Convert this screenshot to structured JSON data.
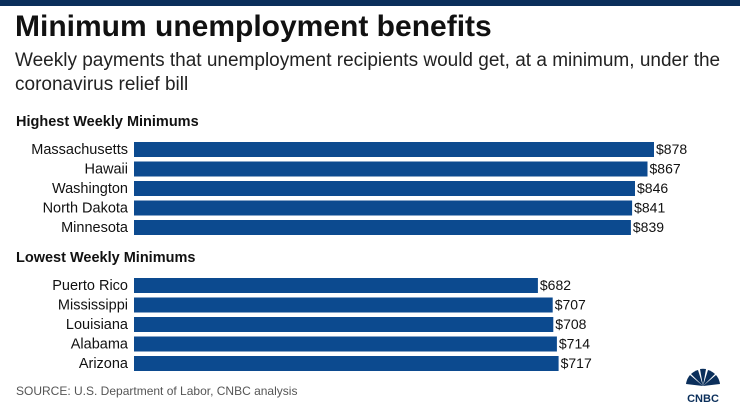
{
  "title": "Minimum unemployment benefits",
  "subtitle": "Weekly payments that unemployment recipients would get, at a minimum, under the coronavirus relief bill",
  "source": "SOURCE: U.S. Department of Labor, CNBC analysis",
  "logo_text": "CNBC",
  "colors": {
    "bar": "#0c4a8f",
    "top_rule": "#0b2f5b"
  },
  "chart_data": [
    {
      "type": "bar",
      "orientation": "horizontal",
      "title": "Highest Weekly Minimums",
      "categories": [
        "Massachusetts",
        "Hawaii",
        "Washington",
        "North Dakota",
        "Minnesota"
      ],
      "values": [
        878,
        867,
        846,
        841,
        839
      ],
      "value_labels": [
        "$878",
        "$867",
        "$846",
        "$841",
        "$839"
      ],
      "xlim": [
        0,
        878
      ],
      "grid": false
    },
    {
      "type": "bar",
      "orientation": "horizontal",
      "title": "Lowest Weekly Minimums",
      "categories": [
        "Puerto Rico",
        "Mississippi",
        "Louisiana",
        "Alabama",
        "Arizona"
      ],
      "values": [
        682,
        707,
        708,
        714,
        717
      ],
      "value_labels": [
        "$682",
        "$707",
        "$708",
        "$714",
        "$717"
      ],
      "xlim": [
        0,
        878
      ],
      "grid": false
    }
  ]
}
